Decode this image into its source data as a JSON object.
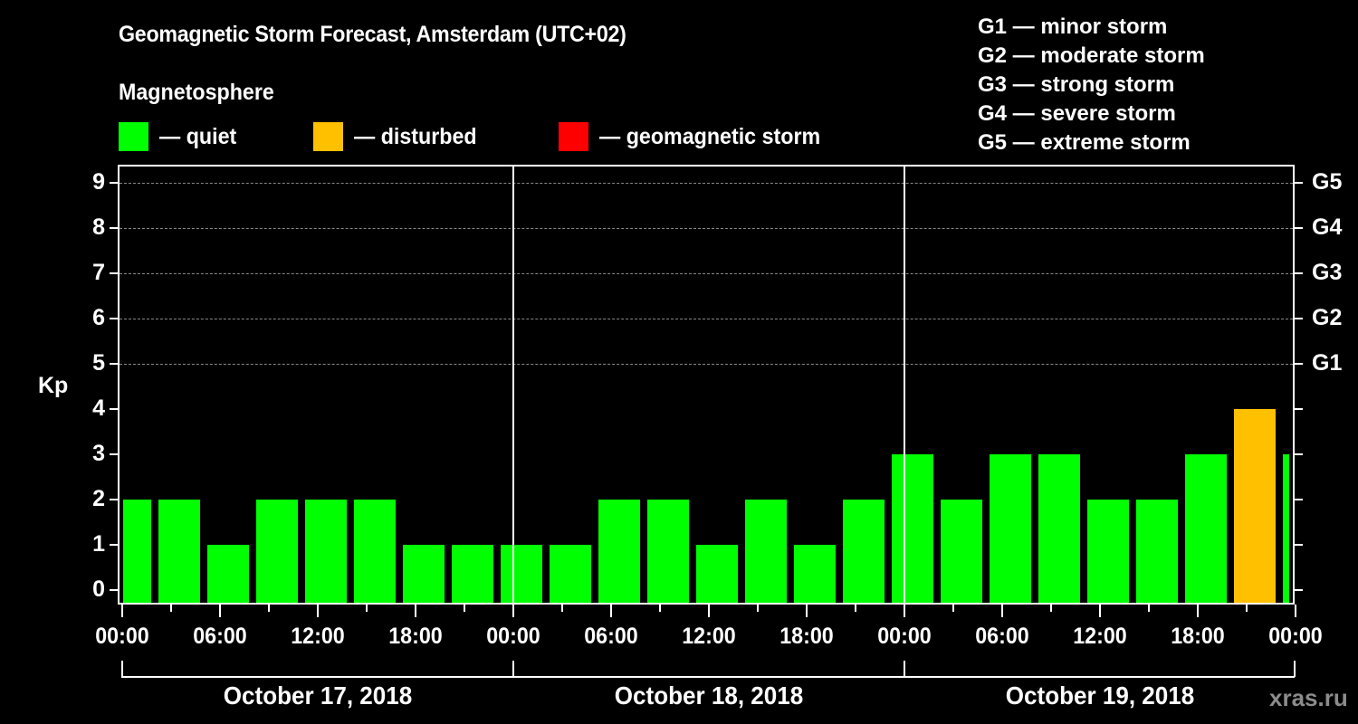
{
  "header": {
    "title": "Geomagnetic Storm Forecast, Amsterdam (UTC+02)",
    "subtitle": "Magnetosphere"
  },
  "legend": [
    {
      "label": "— quiet",
      "color": "#00ff00"
    },
    {
      "label": "— disturbed",
      "color": "#ffc000"
    },
    {
      "label": "— geomagnetic storm",
      "color": "#ff0000"
    }
  ],
  "storm_scale": [
    "G1 — minor storm",
    "G2 — moderate storm",
    "G3 — strong storm",
    "G4 — severe storm",
    "G5 — extreme storm"
  ],
  "axes": {
    "ylabel": "Kp",
    "yticks": [
      "0",
      "1",
      "2",
      "3",
      "4",
      "5",
      "6",
      "7",
      "8",
      "9"
    ],
    "right_ticks": [
      "G1",
      "G2",
      "G3",
      "G4",
      "G5"
    ],
    "xticks": [
      "00:00",
      "06:00",
      "12:00",
      "18:00",
      "00:00",
      "06:00",
      "12:00",
      "18:00",
      "00:00",
      "06:00",
      "12:00",
      "18:00",
      "00:00"
    ],
    "dates": [
      "October 17, 2018",
      "October 18, 2018",
      "October 19, 2018"
    ]
  },
  "credit": "xras.ru",
  "colors": {
    "quiet": "#00ff00",
    "disturbed": "#ffc000",
    "storm": "#ff0000",
    "background": "#000000"
  },
  "chart_data": {
    "type": "bar",
    "title": "Geomagnetic Storm Forecast, Amsterdam (UTC+02)",
    "xlabel": "",
    "ylabel": "Kp",
    "ylim": [
      0,
      9
    ],
    "grid": "horizontal dashed at Kp 5-9",
    "right_axis": {
      "G1": 5,
      "G2": 6,
      "G3": 7,
      "G4": 8,
      "G5": 9
    },
    "categories": [
      "Oct 17 00:00",
      "Oct 17 03:00",
      "Oct 17 06:00",
      "Oct 17 09:00",
      "Oct 17 12:00",
      "Oct 17 15:00",
      "Oct 17 18:00",
      "Oct 17 21:00",
      "Oct 18 00:00",
      "Oct 18 03:00",
      "Oct 18 06:00",
      "Oct 18 09:00",
      "Oct 18 12:00",
      "Oct 18 15:00",
      "Oct 18 18:00",
      "Oct 18 21:00",
      "Oct 19 00:00",
      "Oct 19 03:00",
      "Oct 19 06:00",
      "Oct 19 09:00",
      "Oct 19 12:00",
      "Oct 19 15:00",
      "Oct 19 18:00",
      "Oct 19 21:00",
      "Oct 20 00:00"
    ],
    "values": [
      2,
      2,
      1,
      2,
      2,
      2,
      1,
      1,
      1,
      1,
      2,
      2,
      1,
      2,
      1,
      2,
      3,
      2,
      3,
      3,
      2,
      2,
      3,
      4,
      3
    ],
    "status": [
      "quiet",
      "quiet",
      "quiet",
      "quiet",
      "quiet",
      "quiet",
      "quiet",
      "quiet",
      "quiet",
      "quiet",
      "quiet",
      "quiet",
      "quiet",
      "quiet",
      "quiet",
      "quiet",
      "quiet",
      "quiet",
      "quiet",
      "quiet",
      "quiet",
      "quiet",
      "quiet",
      "disturbed",
      "quiet"
    ]
  }
}
